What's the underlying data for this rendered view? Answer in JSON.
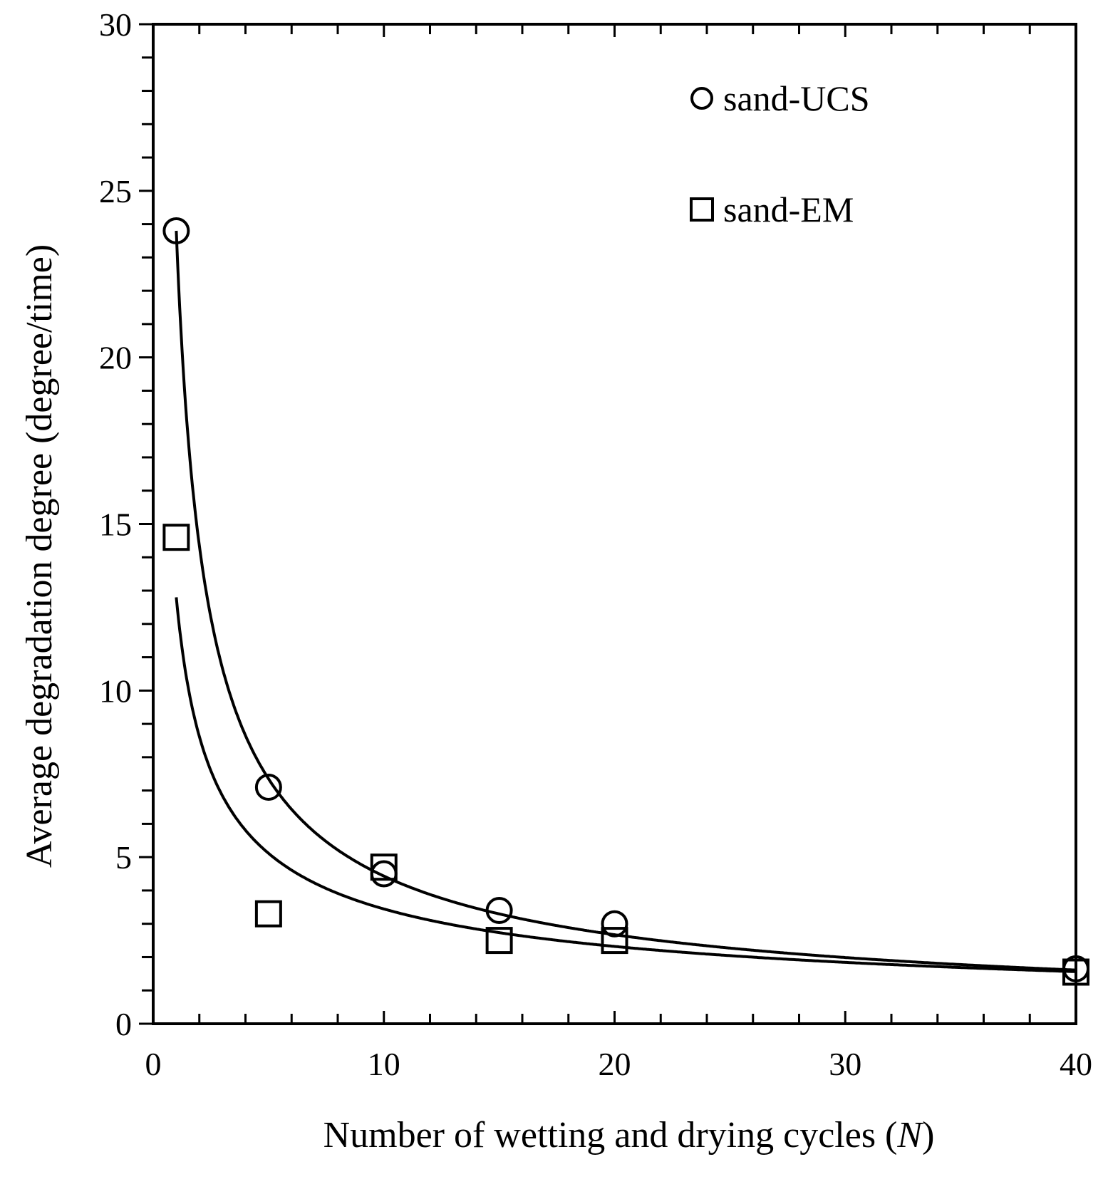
{
  "chart_data": {
    "type": "scatter",
    "title": "",
    "xlabel": "Number of wetting and drying cycles (",
    "xlabel_var": "N",
    "xlabel_end": ")",
    "ylabel": "Average degradation degree (degree/time)",
    "xlim": [
      0,
      40
    ],
    "ylim": [
      0,
      30
    ],
    "xticks": [
      0,
      10,
      20,
      30,
      40
    ],
    "yticks": [
      0,
      5,
      10,
      15,
      20,
      25,
      30
    ],
    "x_minor_step": 2,
    "y_minor_step": 1,
    "grid": false,
    "legend_position": "top-right",
    "series": [
      {
        "name": "sand-UCS",
        "marker": "circle",
        "x": [
          1,
          5,
          10,
          15,
          20,
          40
        ],
        "y": [
          23.8,
          7.1,
          4.5,
          3.4,
          3.0,
          1.65
        ],
        "fit": {
          "model": "power",
          "a": 23.8,
          "b": -0.73,
          "x_start": 1,
          "x_end": 40
        }
      },
      {
        "name": "sand-EM",
        "marker": "square",
        "x": [
          1,
          5,
          10,
          15,
          20,
          40
        ],
        "y": [
          14.6,
          3.3,
          4.7,
          2.5,
          2.5,
          1.55
        ],
        "fit": {
          "model": "power",
          "a": 12.8,
          "b": -0.57,
          "x_start": 1,
          "x_end": 40
        }
      }
    ],
    "colors": {
      "line": "#000000",
      "background": "#ffffff"
    }
  }
}
